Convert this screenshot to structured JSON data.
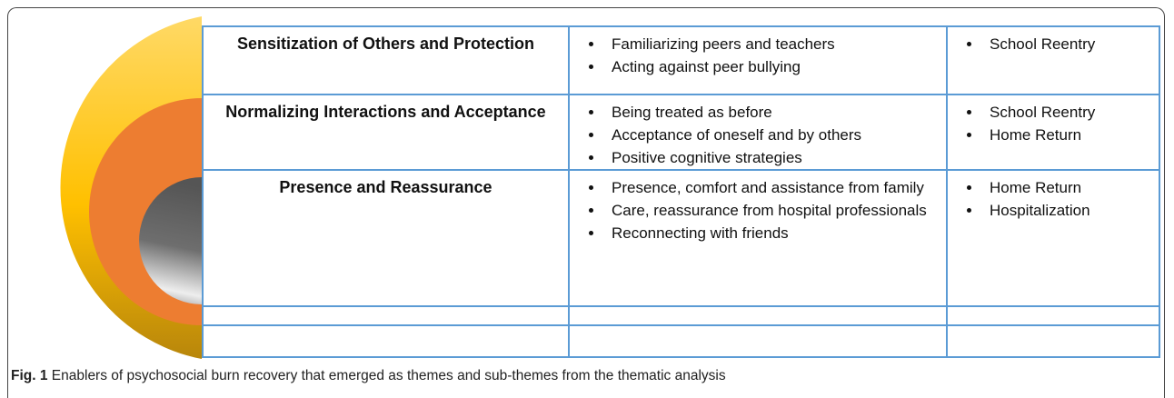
{
  "table": {
    "rows": [
      {
        "theme": "Sensitization of Others and Protection",
        "subthemes": [
          "Familiarizing peers and teachers",
          "Acting against peer bullying"
        ],
        "contexts": [
          "School Reentry"
        ]
      },
      {
        "theme": "Normalizing Interactions and Acceptance",
        "subthemes": [
          "Being treated as before",
          "Acceptance of oneself and by others",
          "Positive cognitive strategies"
        ],
        "contexts": [
          "School Reentry",
          "Home Return"
        ]
      },
      {
        "theme": "Presence and Reassurance",
        "subthemes": [
          "Presence, comfort and assistance from family",
          "Care, reassurance from hospital professionals",
          "Reconnecting with friends"
        ],
        "contexts": [
          "Home Return",
          "Hospitalization"
        ]
      }
    ]
  },
  "caption": {
    "label": "Fig. 1",
    "text": "Enablers of psychosocial burn recovery that emerged as themes and sub-themes from the thematic analysis"
  }
}
